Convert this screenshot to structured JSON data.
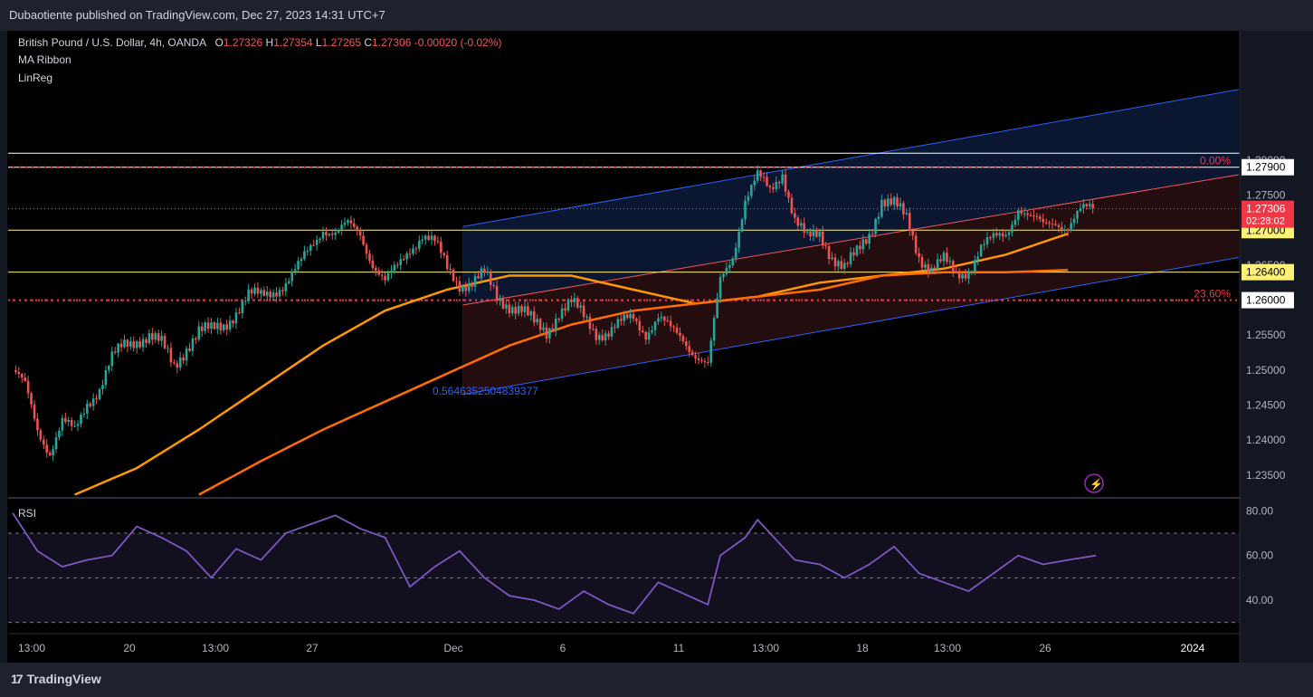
{
  "header": {
    "publisher_line": "Dubaotiente published on TradingView.com, Dec 27, 2023 14:31 UTC+7"
  },
  "legend": {
    "symbol": "British Pound / U.S. Dollar, 4h, OANDA",
    "o_label": "O",
    "o_value": "1.27326",
    "h_label": "H",
    "h_value": "1.27354",
    "l_label": "L",
    "l_value": "1.27265",
    "c_label": "C",
    "c_value": "1.27306",
    "change": "-0.00020 (-0.02%)",
    "indicator_1": "MA Ribbon",
    "indicator_2": "LinReg"
  },
  "rsi_title": "RSI",
  "regression_label": "0.5646352504839377",
  "footer": {
    "brand": "TradingView"
  },
  "colors": {
    "up": "#26a69a",
    "down": "#ef5350",
    "ma_fast": "#ff9800",
    "ma_slow": "#ff6d00",
    "channel": "#2962ff",
    "center": "#f7525f",
    "rsi": "#7e57c2",
    "level_yellow": "#fff176"
  },
  "chart_data": {
    "type": "candlestick",
    "y_range": [
      1.232,
      1.2985
    ],
    "price_ticks": [
      "1.28000",
      "1.27500",
      "1.26500",
      "1.25500",
      "1.25000",
      "1.24500",
      "1.24000",
      "1.23500"
    ],
    "price_tick_values": [
      1.28,
      1.275,
      1.265,
      1.255,
      1.25,
      1.245,
      1.24,
      1.235
    ],
    "x_ticks": [
      "13:00",
      "20",
      "13:00",
      "27",
      "Dec",
      "6",
      "11",
      "13:00",
      "18",
      "13:00",
      "26",
      "2024"
    ],
    "price_levels": [
      {
        "label": "1.27900",
        "value": 1.279,
        "style": "white",
        "fib": "0.00%"
      },
      {
        "label": "1.27000",
        "value": 1.27,
        "style": "yellow"
      },
      {
        "label": "1.26400",
        "value": 1.264,
        "style": "yellow"
      },
      {
        "label": "1.26000",
        "value": 1.26,
        "style": "red-dotted",
        "fib": "23.60%"
      }
    ],
    "last_price": {
      "label": "1.27306",
      "value": 1.27306,
      "countdown": "02:28:02"
    },
    "close_path": [
      {
        "i": 0,
        "p": 1.25
      },
      {
        "i": 4,
        "p": 1.2475
      },
      {
        "i": 8,
        "p": 1.2415
      },
      {
        "i": 12,
        "p": 1.2385
      },
      {
        "i": 16,
        "p": 1.2425
      },
      {
        "i": 20,
        "p": 1.241
      },
      {
        "i": 24,
        "p": 1.2455
      },
      {
        "i": 28,
        "p": 1.2475
      },
      {
        "i": 32,
        "p": 1.2515
      },
      {
        "i": 36,
        "p": 1.2535
      },
      {
        "i": 40,
        "p": 1.2545
      },
      {
        "i": 44,
        "p": 1.255
      },
      {
        "i": 48,
        "p": 1.2535
      },
      {
        "i": 52,
        "p": 1.2505
      },
      {
        "i": 56,
        "p": 1.2535
      },
      {
        "i": 60,
        "p": 1.2555
      },
      {
        "i": 64,
        "p": 1.2555
      },
      {
        "i": 68,
        "p": 1.2565
      },
      {
        "i": 72,
        "p": 1.2585
      },
      {
        "i": 76,
        "p": 1.2605
      },
      {
        "i": 80,
        "p": 1.2605
      },
      {
        "i": 84,
        "p": 1.2615
      },
      {
        "i": 88,
        "p": 1.2625
      },
      {
        "i": 92,
        "p": 1.2645
      },
      {
        "i": 96,
        "p": 1.2675
      },
      {
        "i": 100,
        "p": 1.2705
      },
      {
        "i": 104,
        "p": 1.2695
      },
      {
        "i": 108,
        "p": 1.2705
      },
      {
        "i": 112,
        "p": 1.2695
      },
      {
        "i": 116,
        "p": 1.2655
      },
      {
        "i": 120,
        "p": 1.2625
      },
      {
        "i": 124,
        "p": 1.2645
      },
      {
        "i": 128,
        "p": 1.2675
      },
      {
        "i": 132,
        "p": 1.2695
      },
      {
        "i": 136,
        "p": 1.268
      },
      {
        "i": 140,
        "p": 1.2645
      },
      {
        "i": 144,
        "p": 1.2625
      },
      {
        "i": 148,
        "p": 1.2625
      },
      {
        "i": 152,
        "p": 1.2635
      },
      {
        "i": 156,
        "p": 1.2605
      },
      {
        "i": 160,
        "p": 1.2595
      },
      {
        "i": 164,
        "p": 1.2585
      },
      {
        "i": 168,
        "p": 1.2565
      },
      {
        "i": 172,
        "p": 1.2555
      },
      {
        "i": 176,
        "p": 1.2585
      },
      {
        "i": 180,
        "p": 1.2595
      },
      {
        "i": 184,
        "p": 1.2575
      },
      {
        "i": 188,
        "p": 1.2555
      },
      {
        "i": 192,
        "p": 1.2555
      },
      {
        "i": 196,
        "p": 1.2565
      },
      {
        "i": 200,
        "p": 1.2575
      },
      {
        "i": 204,
        "p": 1.2555
      },
      {
        "i": 208,
        "p": 1.2575
      },
      {
        "i": 212,
        "p": 1.2555
      },
      {
        "i": 216,
        "p": 1.2545
      },
      {
        "i": 220,
        "p": 1.2525
      },
      {
        "i": 224,
        "p": 1.2505
      },
      {
        "i": 228,
        "p": 1.2625
      },
      {
        "i": 232,
        "p": 1.2665
      },
      {
        "i": 236,
        "p": 1.2745
      },
      {
        "i": 240,
        "p": 1.2775
      },
      {
        "i": 244,
        "p": 1.2755
      },
      {
        "i": 248,
        "p": 1.2785
      },
      {
        "i": 252,
        "p": 1.2715
      },
      {
        "i": 256,
        "p": 1.2685
      },
      {
        "i": 260,
        "p": 1.2695
      },
      {
        "i": 264,
        "p": 1.2665
      },
      {
        "i": 268,
        "p": 1.2645
      },
      {
        "i": 272,
        "p": 1.2665
      },
      {
        "i": 276,
        "p": 1.2695
      },
      {
        "i": 280,
        "p": 1.2745
      },
      {
        "i": 284,
        "p": 1.2735
      },
      {
        "i": 288,
        "p": 1.2715
      },
      {
        "i": 292,
        "p": 1.2665
      },
      {
        "i": 296,
        "p": 1.2645
      },
      {
        "i": 300,
        "p": 1.2655
      },
      {
        "i": 304,
        "p": 1.2635
      },
      {
        "i": 308,
        "p": 1.2645
      },
      {
        "i": 312,
        "p": 1.2675
      },
      {
        "i": 316,
        "p": 1.2685
      },
      {
        "i": 320,
        "p": 1.2695
      },
      {
        "i": 324,
        "p": 1.2735
      },
      {
        "i": 328,
        "p": 1.2715
      },
      {
        "i": 332,
        "p": 1.2705
      },
      {
        "i": 336,
        "p": 1.2715
      },
      {
        "i": 340,
        "p": 1.2705
      },
      {
        "i": 344,
        "p": 1.2725
      },
      {
        "i": 348,
        "p": 1.2731
      }
    ],
    "ma_fast": [
      {
        "i": 20,
        "p": 1.2322
      },
      {
        "i": 40,
        "p": 1.236
      },
      {
        "i": 60,
        "p": 1.2415
      },
      {
        "i": 80,
        "p": 1.2475
      },
      {
        "i": 100,
        "p": 1.2535
      },
      {
        "i": 120,
        "p": 1.2585
      },
      {
        "i": 140,
        "p": 1.2615
      },
      {
        "i": 160,
        "p": 1.2635
      },
      {
        "i": 180,
        "p": 1.2635
      },
      {
        "i": 200,
        "p": 1.2615
      },
      {
        "i": 220,
        "p": 1.2595
      },
      {
        "i": 240,
        "p": 1.2605
      },
      {
        "i": 260,
        "p": 1.2625
      },
      {
        "i": 280,
        "p": 1.2635
      },
      {
        "i": 300,
        "p": 1.2645
      },
      {
        "i": 320,
        "p": 1.2665
      },
      {
        "i": 340,
        "p": 1.2695
      }
    ],
    "ma_slow": [
      {
        "i": 60,
        "p": 1.2322
      },
      {
        "i": 80,
        "p": 1.237
      },
      {
        "i": 100,
        "p": 1.2415
      },
      {
        "i": 120,
        "p": 1.2455
      },
      {
        "i": 140,
        "p": 1.2495
      },
      {
        "i": 160,
        "p": 1.2535
      },
      {
        "i": 180,
        "p": 1.2565
      },
      {
        "i": 200,
        "p": 1.2585
      },
      {
        "i": 220,
        "p": 1.2595
      },
      {
        "i": 240,
        "p": 1.2605
      },
      {
        "i": 260,
        "p": 1.2615
      },
      {
        "i": 280,
        "p": 1.2635
      },
      {
        "i": 300,
        "p": 1.264
      },
      {
        "i": 320,
        "p": 1.264
      },
      {
        "i": 340,
        "p": 1.2643
      }
    ],
    "regression_channel": {
      "start_i": 145,
      "end_i": 349,
      "upper": [
        1.2705,
        1.2865
      ],
      "center": [
        1.2593,
        1.2745
      ],
      "lower": [
        1.2465,
        1.2625
      ]
    },
    "rsi": {
      "y_range": [
        25,
        85
      ],
      "ticks": [
        "80.00",
        "60.00",
        "40.00"
      ],
      "tick_values": [
        80,
        60,
        40
      ],
      "bands": [
        70,
        50,
        30
      ],
      "values": [
        {
          "i": 0,
          "v": 79
        },
        {
          "i": 8,
          "v": 62
        },
        {
          "i": 16,
          "v": 55
        },
        {
          "i": 24,
          "v": 58
        },
        {
          "i": 32,
          "v": 60
        },
        {
          "i": 40,
          "v": 73
        },
        {
          "i": 48,
          "v": 68
        },
        {
          "i": 56,
          "v": 62
        },
        {
          "i": 64,
          "v": 50
        },
        {
          "i": 72,
          "v": 63
        },
        {
          "i": 80,
          "v": 58
        },
        {
          "i": 88,
          "v": 70
        },
        {
          "i": 96,
          "v": 74
        },
        {
          "i": 104,
          "v": 78
        },
        {
          "i": 112,
          "v": 72
        },
        {
          "i": 120,
          "v": 68
        },
        {
          "i": 128,
          "v": 46
        },
        {
          "i": 136,
          "v": 55
        },
        {
          "i": 144,
          "v": 62
        },
        {
          "i": 152,
          "v": 50
        },
        {
          "i": 160,
          "v": 42
        },
        {
          "i": 168,
          "v": 40
        },
        {
          "i": 176,
          "v": 36
        },
        {
          "i": 184,
          "v": 44
        },
        {
          "i": 192,
          "v": 38
        },
        {
          "i": 200,
          "v": 34
        },
        {
          "i": 208,
          "v": 48
        },
        {
          "i": 216,
          "v": 43
        },
        {
          "i": 224,
          "v": 38
        },
        {
          "i": 228,
          "v": 60
        },
        {
          "i": 236,
          "v": 68
        },
        {
          "i": 240,
          "v": 76
        },
        {
          "i": 244,
          "v": 70
        },
        {
          "i": 252,
          "v": 58
        },
        {
          "i": 260,
          "v": 56
        },
        {
          "i": 268,
          "v": 50
        },
        {
          "i": 276,
          "v": 56
        },
        {
          "i": 284,
          "v": 64
        },
        {
          "i": 292,
          "v": 52
        },
        {
          "i": 300,
          "v": 48
        },
        {
          "i": 308,
          "v": 44
        },
        {
          "i": 316,
          "v": 52
        },
        {
          "i": 324,
          "v": 60
        },
        {
          "i": 332,
          "v": 56
        },
        {
          "i": 340,
          "v": 58
        },
        {
          "i": 349,
          "v": 60
        }
      ]
    }
  }
}
